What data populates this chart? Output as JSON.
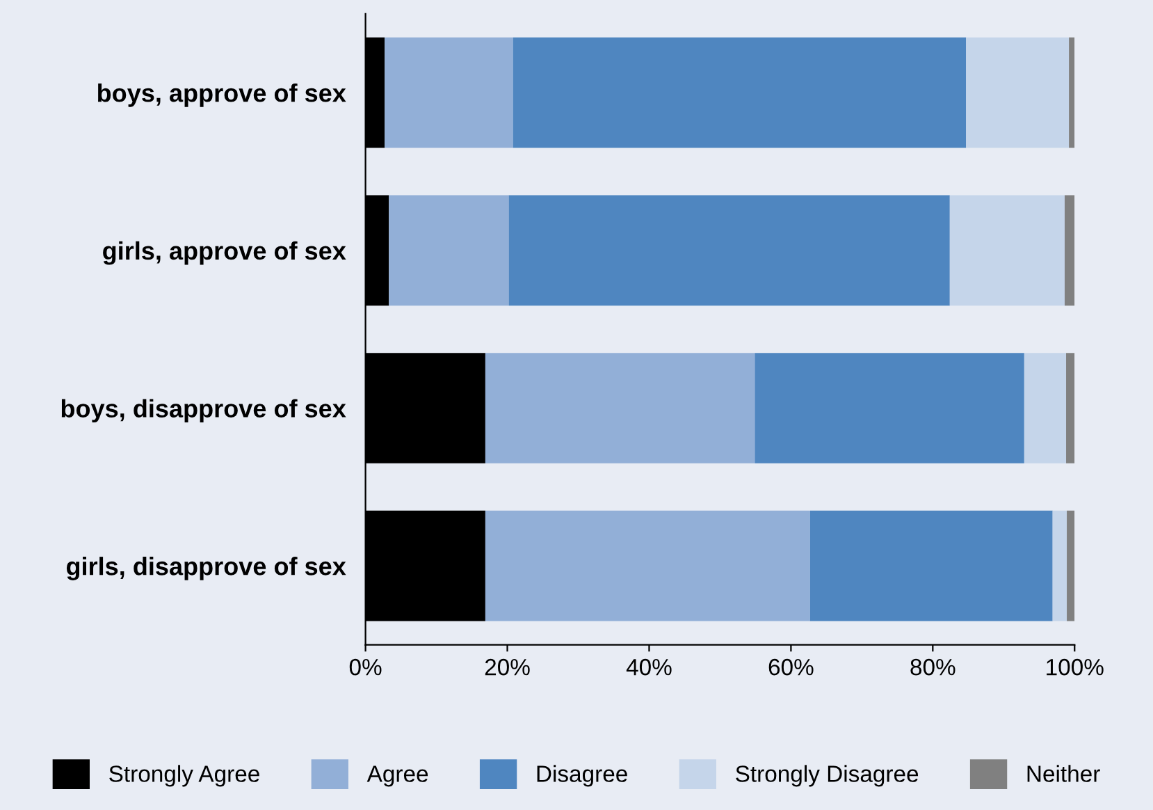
{
  "chart_data": {
    "type": "bar",
    "orientation": "horizontal",
    "stacked": true,
    "categories": [
      "boys, approve of sex",
      "girls, approve of sex",
      "boys, disapprove of sex",
      "girls, disapprove of sex"
    ],
    "series": [
      {
        "name": "Strongly Agree",
        "color": "#000000",
        "values": [
          2.7,
          3.3,
          16.9,
          16.9
        ]
      },
      {
        "name": "Agree",
        "color": "#92afd7",
        "values": [
          18.1,
          16.9,
          38,
          45.8
        ]
      },
      {
        "name": "Disagree",
        "color": "#4f86c0",
        "values": [
          63.9,
          62.2,
          38,
          34.2
        ]
      },
      {
        "name": "Strongly Disagree",
        "color": "#c5d5ea",
        "values": [
          14.5,
          16.2,
          5.9,
          2
        ]
      },
      {
        "name": "Neither",
        "color": "#808080",
        "values": [
          0.8,
          1.4,
          1.2,
          1.1
        ]
      }
    ],
    "xlim": [
      0,
      100
    ],
    "xticks": [
      {
        "value": 0,
        "label": "0%"
      },
      {
        "value": 20,
        "label": "20%"
      },
      {
        "value": 40,
        "label": "40%"
      },
      {
        "value": 60,
        "label": "60%"
      },
      {
        "value": 80,
        "label": "80%"
      },
      {
        "value": 100,
        "label": "100%"
      }
    ],
    "grid": false,
    "legend": "bottom"
  }
}
